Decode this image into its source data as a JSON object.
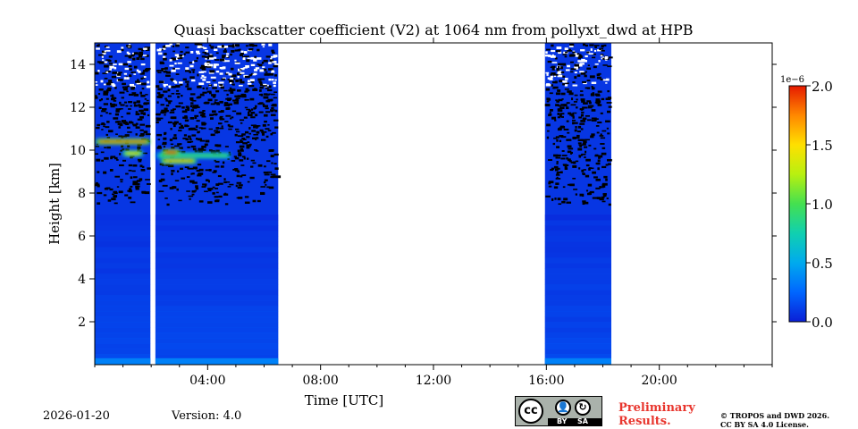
{
  "chart_data": {
    "type": "heatmap",
    "title": "Quasi backscatter coefficient (V2) at 1064 nm from pollyxt_dwd at HPB",
    "xlabel": "Time [UTC]",
    "ylabel": "Height [km]",
    "xlim_hours": [
      0,
      24
    ],
    "ylim_km": [
      0,
      15
    ],
    "x_ticks": [
      {
        "hour": 4,
        "label": "04:00"
      },
      {
        "hour": 8,
        "label": "08:00"
      },
      {
        "hour": 12,
        "label": "12:00"
      },
      {
        "hour": 16,
        "label": "16:00"
      },
      {
        "hour": 20,
        "label": "20:00"
      }
    ],
    "x_minor_hours": [
      0,
      1,
      2,
      3,
      5,
      6,
      7,
      9,
      10,
      11,
      13,
      14,
      15,
      17,
      18,
      19,
      21,
      22,
      23,
      24
    ],
    "y_ticks": [
      {
        "km": 2,
        "label": "2"
      },
      {
        "km": 4,
        "label": "4"
      },
      {
        "km": 6,
        "label": "6"
      },
      {
        "km": 8,
        "label": "8"
      },
      {
        "km": 10,
        "label": "10"
      },
      {
        "km": 12,
        "label": "12"
      },
      {
        "km": 14,
        "label": "14"
      }
    ],
    "measurement_periods_hours": [
      [
        0.0,
        1.97
      ],
      [
        2.15,
        6.5
      ],
      [
        15.95,
        18.3
      ]
    ],
    "noise_region_above_km": 7.5,
    "cloud_layers": [
      {
        "start_hour": 0.05,
        "end_hour": 1.95,
        "height_km": 10.4,
        "intensity": 1.8
      },
      {
        "start_hour": 1.0,
        "end_hour": 1.7,
        "height_km": 9.85,
        "intensity": 1.5
      },
      {
        "start_hour": 2.2,
        "end_hour": 4.8,
        "height_km": 9.75,
        "intensity": 1.0
      },
      {
        "start_hour": 2.35,
        "end_hour": 3.6,
        "height_km": 9.5,
        "intensity": 1.6
      },
      {
        "start_hour": 2.4,
        "end_hour": 3.0,
        "height_km": 9.9,
        "intensity": 1.9
      }
    ],
    "boundary_layer_km": 0.3,
    "colorbar": {
      "min": 0.0,
      "max": 2.0,
      "multiplier_label": "1e−6",
      "ticks": [
        {
          "value": 0.0,
          "label": "0.0"
        },
        {
          "value": 0.5,
          "label": "0.5"
        },
        {
          "value": 1.0,
          "label": "1.0"
        },
        {
          "value": 1.5,
          "label": "1.5"
        },
        {
          "value": 2.0,
          "label": "2.0"
        }
      ],
      "colors": [
        "#0a1fd6",
        "#0066ff",
        "#00aaee",
        "#10d0b0",
        "#44e050",
        "#b8f010",
        "#ffe000",
        "#ff8800",
        "#e61a00"
      ]
    }
  },
  "footer": {
    "date": "2026-01-20",
    "version": "Version: 4.0",
    "license_badge": {
      "cc": "cc",
      "by": "BY",
      "sa": "SA"
    },
    "preliminary_line1": "Preliminary",
    "preliminary_line2": "Results.",
    "copyright_line1": "© TROPOS and DWD 2026.",
    "copyright_line2": "CC BY SA 4.0 License."
  }
}
